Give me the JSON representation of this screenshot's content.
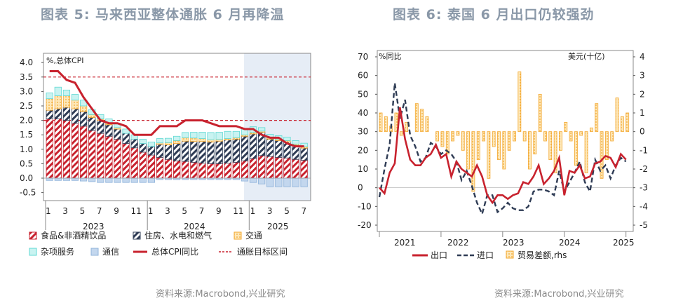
{
  "left": {
    "title": "图表 5:  马来西亚整体通胀 6 月再降温",
    "source": "资料来源:Macrobond,兴业研究"
  },
  "right": {
    "title": "图表 6:  泰国 6 月出口仍较强劲",
    "source": "资料来源:Macrobond,兴业研究"
  },
  "chart_data": [
    {
      "type": "bar",
      "stacked": true,
      "ylabel": "%,总体CPI",
      "ylim": [
        -0.5,
        4.0
      ],
      "yticks": [
        "4.0",
        "3.5",
        "3.0",
        "2.5",
        "2.0",
        "1.5",
        "1.0",
        "0.5",
        "0.0",
        "-0.5"
      ],
      "xtick_labels": [
        "1",
        "3",
        "5",
        "7",
        "9",
        "11",
        "1",
        "3",
        "5",
        "7",
        "9",
        "11",
        "1",
        "3",
        "5",
        "7"
      ],
      "year_labels": [
        "2023",
        "2024",
        "2025"
      ],
      "forecast_shading_from_index": 24,
      "target_band": [
        2.0,
        3.5
      ],
      "series": [
        {
          "name": "食品&非酒精饮品",
          "color": "#c8222e",
          "values": [
            2.05,
            2.05,
            2.0,
            1.9,
            1.8,
            1.65,
            1.55,
            1.45,
            1.35,
            1.2,
            1.05,
            0.9,
            0.8,
            0.72,
            0.65,
            0.6,
            0.58,
            0.55,
            0.52,
            0.5,
            0.5,
            0.52,
            0.55,
            0.6,
            0.68,
            0.78,
            0.75,
            0.72,
            0.7,
            0.65,
            0.62
          ]
        },
        {
          "name": "住房、水电和燃气",
          "color": "#2f3c55",
          "values": [
            0.3,
            0.35,
            0.45,
            0.5,
            0.5,
            0.45,
            0.45,
            0.4,
            0.35,
            0.35,
            0.3,
            0.3,
            0.3,
            0.45,
            0.5,
            0.6,
            0.7,
            0.72,
            0.75,
            0.75,
            0.78,
            0.8,
            0.8,
            0.85,
            0.85,
            0.8,
            0.6,
            0.58,
            0.55,
            0.48,
            0.42
          ]
        },
        {
          "name": "交通",
          "color": "#f3a72e",
          "values": [
            0.4,
            0.45,
            0.4,
            0.3,
            0.2,
            0.1,
            0.05,
            0.05,
            0.05,
            0.0,
            0.0,
            0.0,
            0.0,
            0.05,
            0.08,
            0.1,
            0.12,
            0.12,
            0.1,
            0.08,
            0.06,
            0.05,
            0.05,
            0.05,
            0.05,
            0.05,
            0.05,
            0.05,
            0.05,
            0.05,
            0.05
          ]
        },
        {
          "name": "杂项服务",
          "color": "#5fd8d3",
          "values": [
            0.2,
            0.3,
            0.2,
            0.2,
            0.2,
            0.18,
            0.15,
            0.15,
            0.15,
            0.15,
            0.15,
            0.15,
            0.15,
            0.15,
            0.15,
            0.15,
            0.18,
            0.2,
            0.22,
            0.25,
            0.25,
            0.25,
            0.22,
            0.2,
            0.2,
            0.12,
            0.12,
            0.12,
            0.12,
            0.12,
            0.12
          ]
        },
        {
          "name": "通信",
          "color": "#8fb3da",
          "values": [
            -0.08,
            -0.08,
            -0.08,
            -0.08,
            -0.1,
            -0.12,
            -0.15,
            -0.15,
            -0.15,
            -0.15,
            -0.15,
            -0.15,
            -0.15,
            -0.05,
            -0.05,
            -0.05,
            -0.05,
            -0.05,
            -0.05,
            -0.05,
            -0.05,
            -0.05,
            -0.05,
            -0.1,
            -0.15,
            -0.2,
            -0.3,
            -0.3,
            -0.3,
            -0.3,
            -0.3
          ]
        }
      ],
      "line": {
        "name": "总体CPI同比",
        "color": "#c8222e",
        "values": [
          3.7,
          3.7,
          3.4,
          3.3,
          2.8,
          2.4,
          2.0,
          1.9,
          1.9,
          1.8,
          1.5,
          1.5,
          1.5,
          1.8,
          1.8,
          1.8,
          2.0,
          2.0,
          2.0,
          1.9,
          1.8,
          1.8,
          1.8,
          1.7,
          1.7,
          1.5,
          1.4,
          1.4,
          1.2,
          1.1,
          1.1
        ]
      },
      "target_name": "通胀目标区间"
    },
    {
      "type": "bar+line",
      "ylabel_left": "%同比",
      "ylabel_right": "美元(十亿)",
      "ylim_left": [
        -20,
        70
      ],
      "ylim_right": [
        -5,
        4
      ],
      "yticks_left": [
        "70",
        "60",
        "50",
        "40",
        "30",
        "20",
        "10",
        "0",
        "-10",
        "-20"
      ],
      "yticks_right": [
        "4",
        "3",
        "2",
        "1",
        "0",
        "-1",
        "-2",
        "-3",
        "-4",
        "-5"
      ],
      "year_labels": [
        "2021",
        "2022",
        "2023",
        "2024",
        "2025"
      ],
      "series": [
        {
          "name": "出口",
          "color": "#c8222e",
          "axis": "left",
          "values": [
            0,
            -3,
            8,
            13,
            43,
            26,
            15,
            12,
            12,
            16,
            18,
            23,
            16,
            18,
            6,
            14,
            10,
            8,
            6,
            12,
            6,
            -4,
            -8,
            -4,
            -4,
            -6,
            -4,
            -3,
            3,
            2,
            6,
            12,
            2,
            5,
            9,
            16,
            -4,
            9,
            8,
            12,
            5,
            6,
            13,
            14,
            17,
            16,
            11,
            18,
            15
          ]
        },
        {
          "name": "进口",
          "color": "#2f3c55",
          "axis": "left",
          "values": [
            -5,
            10,
            23,
            56,
            37,
            47,
            28,
            22,
            14,
            16,
            24,
            22,
            18,
            20,
            18,
            14,
            4,
            9,
            1,
            -8,
            -14,
            -4,
            -4,
            -13,
            -11,
            -8,
            -11,
            -12,
            -12,
            -10,
            -2,
            -1,
            -1,
            -2,
            -4,
            9,
            -2,
            3,
            8,
            14,
            3,
            -2,
            15,
            9,
            12,
            5,
            12,
            16,
            14
          ]
        },
        {
          "name": "贸易差额,rhs",
          "color": "#f3a72e",
          "axis": "right",
          "values": [
            1.0,
            0.8,
            0.3,
            1.0,
            -0.2,
            0.5,
            0.0,
            1.5,
            1.2,
            0.8,
            0.0,
            -0.5,
            -0.8,
            -1.2,
            -0.5,
            -0.2,
            -1.0,
            -2.0,
            -3.2,
            -1.5,
            -0.5,
            -2.5,
            -0.8,
            -1.5,
            -2.0,
            -1.0,
            -0.5,
            3.2,
            -0.5,
            -2.0,
            -1.2,
            2.0,
            -0.5,
            -1.5,
            -2.2,
            -1.0,
            0.5,
            -0.5,
            -1.8,
            -0.2,
            -2.2,
            0.2,
            1.5,
            -2.5,
            -1.5,
            -0.5,
            1.8,
            0.8,
            1.0
          ]
        }
      ]
    }
  ]
}
